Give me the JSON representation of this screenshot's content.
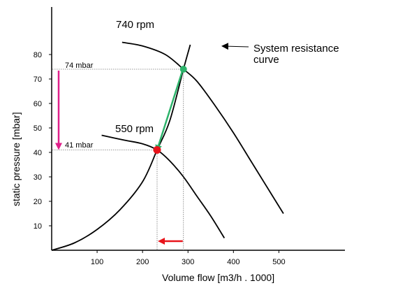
{
  "chart_data": {
    "type": "line",
    "title": "",
    "xlabel": "Volume flow [m3/h . 1000]",
    "ylabel": "static pressure  [mbar]",
    "xlim": [
      0,
      650
    ],
    "ylim": [
      0,
      90
    ],
    "xticks": [
      100,
      200,
      300,
      400,
      500
    ],
    "yticks": [
      10,
      20,
      30,
      40,
      50,
      60,
      70,
      80
    ],
    "grid": false,
    "legend": "none",
    "series": [
      {
        "name": "740 rpm",
        "color": "#000000",
        "points": [
          [
            155,
            85
          ],
          [
            200,
            83.5
          ],
          [
            250,
            80
          ],
          [
            290,
            74
          ],
          [
            320,
            69
          ],
          [
            360,
            59
          ],
          [
            400,
            48
          ],
          [
            440,
            36
          ],
          [
            480,
            24
          ],
          [
            510,
            15
          ]
        ]
      },
      {
        "name": "550 rpm",
        "color": "#000000",
        "points": [
          [
            110,
            47
          ],
          [
            160,
            45
          ],
          [
            200,
            43.5
          ],
          [
            232,
            41
          ],
          [
            260,
            36.5
          ],
          [
            290,
            30
          ],
          [
            320,
            22
          ],
          [
            350,
            14
          ],
          [
            380,
            5
          ]
        ]
      },
      {
        "name": "System resistance curve",
        "color": "#000000",
        "points": [
          [
            0,
            0
          ],
          [
            50,
            3
          ],
          [
            100,
            8.5
          ],
          [
            150,
            16.5
          ],
          [
            200,
            28
          ],
          [
            232,
            41
          ],
          [
            260,
            53
          ],
          [
            290,
            74
          ],
          [
            305,
            84
          ]
        ]
      }
    ],
    "operating_points": [
      {
        "x": 290,
        "y": 74,
        "color": "#2db36b"
      },
      {
        "x": 232,
        "y": 41,
        "color": "#e8141b"
      }
    ],
    "reference_lines": [
      {
        "label": "74 mbar",
        "y": 74,
        "x_end": 290
      },
      {
        "label": "41 mbar",
        "y": 41,
        "x_end": 232
      }
    ],
    "annotations": {
      "rpm_high": "740 rpm",
      "rpm_low": "550 rpm",
      "system_line1": "System resistance",
      "system_line2": "curve"
    },
    "arrows": [
      {
        "from": [
          290,
          74
        ],
        "to": [
          232,
          41
        ],
        "color": "#2db36b"
      },
      {
        "from": [
          0,
          74
        ],
        "to": [
          0,
          41
        ],
        "color": "#e0208a"
      },
      {
        "from": [
          290,
          2
        ],
        "to": [
          232,
          2
        ],
        "color": "#e8141b"
      }
    ]
  }
}
